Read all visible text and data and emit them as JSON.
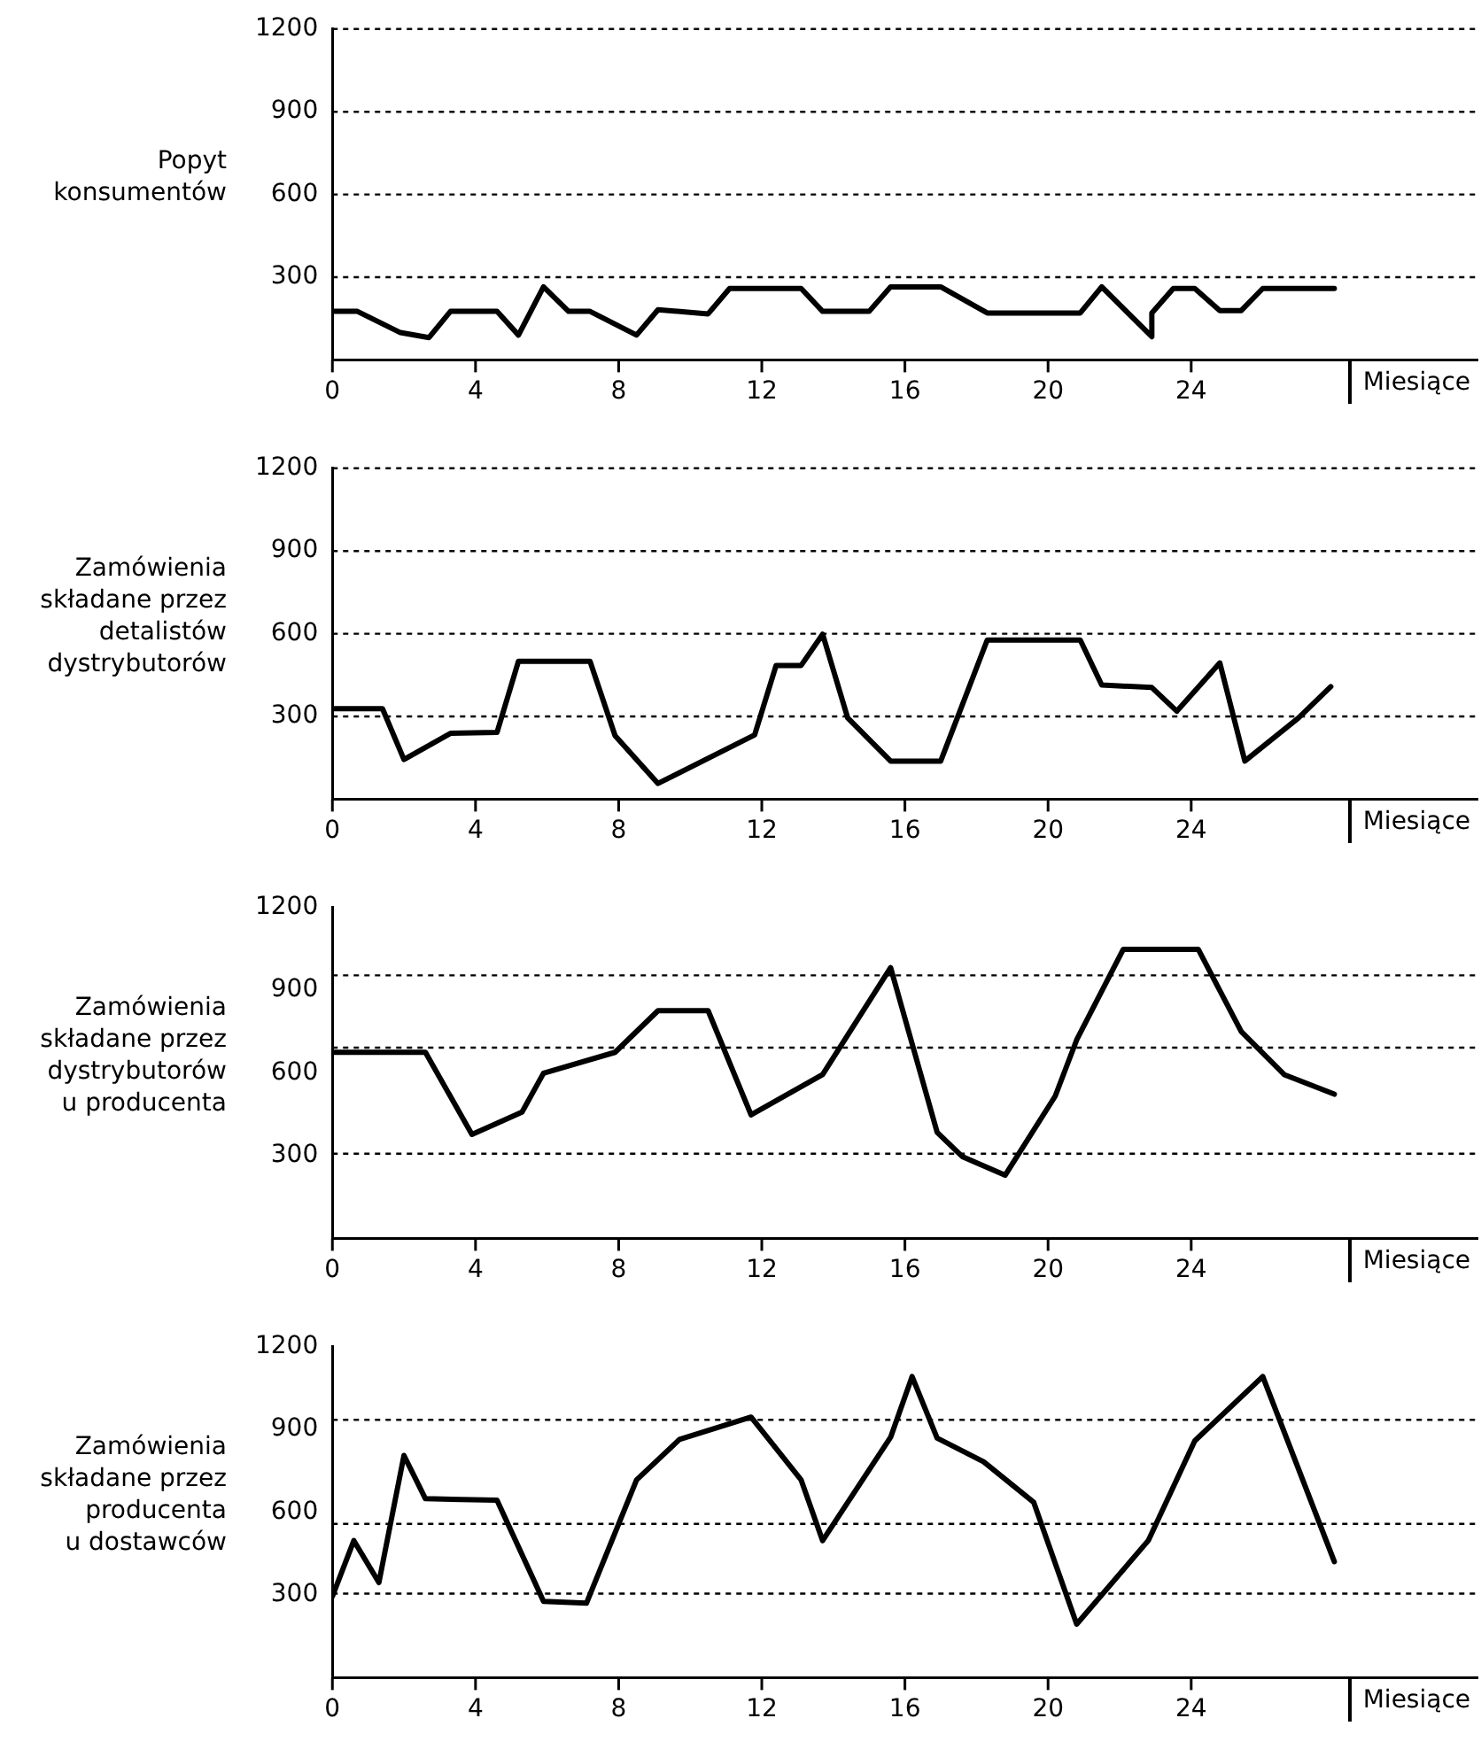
{
  "chart_data": [
    {
      "type": "line",
      "ylabel": "Popyt\nkonsumentów",
      "xlabel": "Miesiące",
      "marker": "none",
      "line_style": "solid",
      "grid": "y",
      "x": [
        0,
        0.7,
        1.9,
        2.7,
        3.3,
        4.6,
        5.2,
        5.9,
        6.6,
        7.2,
        8.5,
        9.1,
        10.5,
        11.1,
        13.1,
        13.7,
        15,
        15.6,
        17,
        18.3,
        20.9,
        21.5,
        22.9,
        22.9,
        23.5,
        24.1,
        24.8,
        25.4,
        26,
        28
      ],
      "series": [
        {
          "color": "#000000",
          "values": [
            176,
            176,
            99,
            81,
            176,
            176,
            90,
            265,
            176,
            176,
            90,
            182,
            167,
            259,
            259,
            176,
            176,
            265,
            265,
            170,
            170,
            265,
            84,
            170,
            259,
            259,
            179,
            179,
            259,
            259
          ]
        }
      ],
      "xlim": [
        0,
        32
      ],
      "xticks": [
        0,
        4,
        8,
        12,
        16,
        20,
        24
      ],
      "ylim": [
        0,
        1200
      ],
      "yticks": [
        300,
        600,
        900,
        1200
      ]
    },
    {
      "type": "line",
      "ylabel": "Zamówienia\nskładane przez\ndetalistów\ndystrybutorów",
      "xlabel": "Miesiące",
      "marker": "none",
      "line_style": "solid",
      "grid": "y",
      "x": [
        0,
        1.4,
        2,
        3.3,
        4.6,
        5.2,
        7.2,
        7.9,
        9.1,
        11.8,
        12.4,
        13.1,
        13.7,
        14.4,
        15.6,
        17,
        18.3,
        20.9,
        21.5,
        22.9,
        23.6,
        24.8,
        25.5,
        27,
        27.9
      ],
      "series": [
        {
          "color": "#000000",
          "values": [
            328,
            328,
            144,
            239,
            242,
            500,
            500,
            230,
            57,
            233,
            485,
            485,
            598,
            295,
            138,
            138,
            577,
            577,
            414,
            405,
            319,
            494,
            138,
            295,
            408
          ]
        }
      ],
      "xlim": [
        0,
        32
      ],
      "xticks": [
        0,
        4,
        8,
        12,
        16,
        20,
        24
      ],
      "ylim": [
        0,
        1200
      ],
      "yticks": [
        300,
        600,
        900,
        1200
      ]
    },
    {
      "type": "line",
      "ylabel": "Zamówienia\nskładane przez\ndystrybutorów\nu producenta",
      "xlabel": "Miesiące",
      "marker": "none",
      "line_style": "solid",
      "x": [
        0,
        2.6,
        3.9,
        5.3,
        5.9,
        7.9,
        9.1,
        10.5,
        11.7,
        13.7,
        15.6,
        16.9,
        17.6,
        18.8,
        20.2,
        20.8,
        22.1,
        24.2,
        25.4,
        26.6,
        28
      ],
      "series": [
        {
          "color": "#000000",
          "values": [
            675,
            675,
            377,
            458,
            599,
            675,
            826,
            826,
            448,
            594,
            982,
            385,
            297,
            229,
            516,
            720,
            1048,
            1048,
            750,
            594,
            523
          ]
        }
      ],
      "xlim": [
        0,
        32
      ],
      "xticks": [
        0,
        4,
        8,
        12,
        16,
        20,
        24
      ],
      "ylim": [
        0,
        1200
      ],
      "yticks": [
        300,
        600,
        900,
        1200
      ],
      "ref_lines": [
        {
          "axis": "y",
          "value": 954,
          "line_style": "dotted"
        },
        {
          "axis": "y",
          "value": 692,
          "line_style": "dotted"
        },
        {
          "axis": "y",
          "value": 307,
          "line_style": "dotted"
        }
      ]
    },
    {
      "type": "line",
      "ylabel": "Zamówienia\nskładane przez\nproducenta\nu dostawców",
      "xlabel": "Miesiące",
      "marker": "none",
      "line_style": "solid",
      "x": [
        0,
        0.6,
        1.3,
        2,
        2.6,
        4.6,
        5.9,
        7.1,
        8.5,
        9.7,
        11.7,
        13.1,
        13.7,
        15.6,
        16.2,
        16.9,
        18.2,
        19.6,
        20.8,
        22.8,
        24.1,
        26,
        28
      ],
      "series": [
        {
          "color": "#000000",
          "values": [
            295,
            497,
            345,
            806,
            649,
            644,
            277,
            270,
            717,
            864,
            945,
            717,
            497,
            872,
            1092,
            869,
            783,
            636,
            194,
            497,
            859,
            1092,
            421
          ]
        }
      ],
      "xlim": [
        0,
        32
      ],
      "xticks": [
        0,
        4,
        8,
        12,
        16,
        20,
        24
      ],
      "ylim": [
        0,
        1200
      ],
      "yticks": [
        300,
        600,
        900,
        1200
      ],
      "ref_lines": [
        {
          "axis": "y",
          "value": 935,
          "line_style": "dotted"
        },
        {
          "axis": "y",
          "value": 558,
          "line_style": "dotted"
        },
        {
          "axis": "y",
          "value": 305,
          "line_style": "dotted"
        }
      ]
    }
  ]
}
